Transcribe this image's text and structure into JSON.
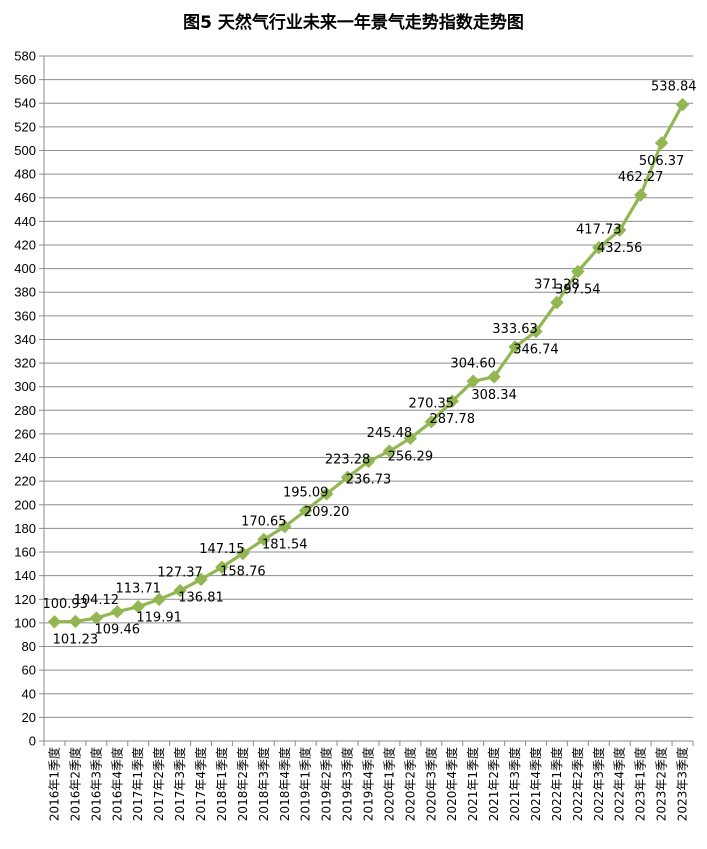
{
  "chart_data": {
    "type": "line",
    "title": "图5 天然气行业未来一年景气走势指数走势图",
    "xlabel": "",
    "ylabel": "",
    "ylim": [
      0,
      580
    ],
    "ytick_step": 20,
    "grid": true,
    "legend": "none",
    "line_color": "#92b752",
    "categories": [
      "2016年1季度",
      "2016年2季度",
      "2016年3季度",
      "2016年4季度",
      "2017年1季度",
      "2017年2季度",
      "2017年3季度",
      "2017年4季度",
      "2018年1季度",
      "2018年2季度",
      "2018年3季度",
      "2018年4季度",
      "2019年1季度",
      "2019年2季度",
      "2019年3季度",
      "2019年4季度",
      "2020年1季度",
      "2020年2季度",
      "2020年3季度",
      "2020年4季度",
      "2021年1季度",
      "2021年2季度",
      "2021年3季度",
      "2021年4季度",
      "2022年1季度",
      "2022年2季度",
      "2022年3季度",
      "2022年4季度",
      "2023年1季度",
      "2023年2季度",
      "2023年3季度"
    ],
    "values": [
      100.93,
      101.23,
      104.12,
      109.46,
      113.71,
      119.91,
      127.37,
      136.81,
      147.15,
      158.76,
      170.65,
      181.54,
      195.09,
      209.2,
      223.28,
      236.73,
      245.48,
      256.29,
      270.35,
      287.78,
      304.6,
      308.34,
      333.63,
      346.74,
      371.28,
      397.54,
      417.73,
      432.56,
      462.27,
      506.37,
      538.84
    ],
    "data_labels": [
      "100.93",
      "101.23",
      "104.12",
      "109.46",
      "113.71",
      "119.91",
      "127.37",
      "136.81",
      "147.15",
      "158.76",
      "170.65",
      "181.54",
      "195.09",
      "209.20",
      "223.28",
      "236.73",
      "245.48",
      "256.29",
      "270.35",
      "287.78",
      "304.60",
      "308.34",
      "333.63",
      "346.74",
      "371.28",
      "397.54",
      "417.73",
      "432.56",
      "462.27",
      "506.37",
      "538.84"
    ]
  }
}
